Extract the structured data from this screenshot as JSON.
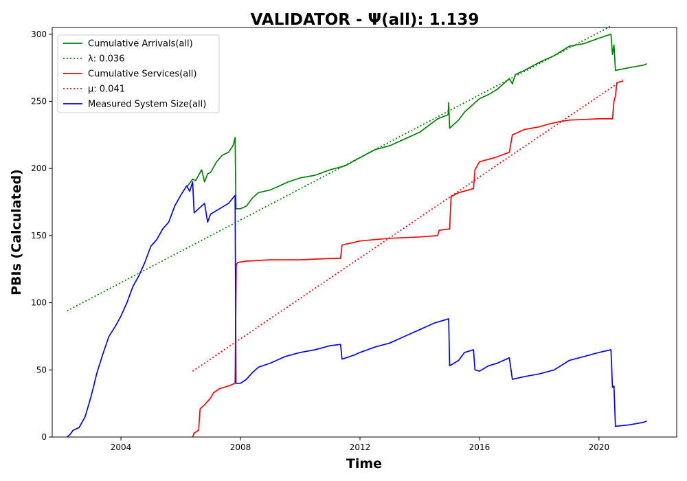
{
  "chart_data": {
    "type": "line",
    "title": "VALIDATOR -  Ψ(all): 1.139",
    "xlabel": "Time",
    "ylabel": "PBIs (Calculated)",
    "xlim": [
      2001.7,
      2022.6
    ],
    "ylim": [
      0,
      305
    ],
    "x_ticks": [
      2004,
      2008,
      2012,
      2016,
      2020
    ],
    "y_ticks": [
      0,
      50,
      100,
      150,
      200,
      250,
      300
    ],
    "grid": false,
    "legend_position": "top-left",
    "series": [
      {
        "name": "Cumulative Arrivals(all)",
        "color": "#008000",
        "style": "solid",
        "points": [
          [
            2006.2,
            186
          ],
          [
            2006.4,
            192
          ],
          [
            2006.5,
            191
          ],
          [
            2006.6,
            195
          ],
          [
            2006.7,
            199
          ],
          [
            2006.8,
            190
          ],
          [
            2006.9,
            196
          ],
          [
            2007.0,
            197
          ],
          [
            2007.2,
            205
          ],
          [
            2007.4,
            210
          ],
          [
            2007.6,
            212
          ],
          [
            2007.75,
            217
          ],
          [
            2007.82,
            223
          ],
          [
            2007.85,
            170
          ],
          [
            2008.0,
            170
          ],
          [
            2008.2,
            172
          ],
          [
            2008.4,
            178
          ],
          [
            2008.6,
            182
          ],
          [
            2009.0,
            184
          ],
          [
            2009.3,
            187
          ],
          [
            2009.6,
            190
          ],
          [
            2010.0,
            193
          ],
          [
            2010.5,
            195
          ],
          [
            2011.0,
            199
          ],
          [
            2011.5,
            202
          ],
          [
            2012.0,
            208
          ],
          [
            2012.5,
            214
          ],
          [
            2013.0,
            217
          ],
          [
            2013.5,
            222
          ],
          [
            2014.0,
            227
          ],
          [
            2014.3,
            232
          ],
          [
            2014.6,
            237
          ],
          [
            2014.95,
            240
          ],
          [
            2014.97,
            249
          ],
          [
            2015.0,
            230
          ],
          [
            2015.3,
            236
          ],
          [
            2015.5,
            242
          ],
          [
            2015.8,
            248
          ],
          [
            2016.0,
            252
          ],
          [
            2016.3,
            255
          ],
          [
            2016.6,
            259
          ],
          [
            2017.0,
            267
          ],
          [
            2017.1,
            263
          ],
          [
            2017.2,
            270
          ],
          [
            2017.5,
            273
          ],
          [
            2018.0,
            279
          ],
          [
            2018.5,
            284
          ],
          [
            2019.0,
            291
          ],
          [
            2019.5,
            293
          ],
          [
            2020.0,
            297
          ],
          [
            2020.4,
            300
          ],
          [
            2020.45,
            285
          ],
          [
            2020.5,
            292
          ],
          [
            2020.55,
            273
          ],
          [
            2021.0,
            275
          ],
          [
            2021.5,
            277
          ],
          [
            2021.6,
            278
          ]
        ]
      },
      {
        "name": "λ: 0.036",
        "color": "#008000",
        "style": "dotted",
        "points": [
          [
            2002.2,
            94
          ],
          [
            2020.4,
            306
          ]
        ]
      },
      {
        "name": "Cumulative Services(all)",
        "color": "#ff0000",
        "style": "solid",
        "points": [
          [
            2006.4,
            0
          ],
          [
            2006.45,
            3
          ],
          [
            2006.6,
            5
          ],
          [
            2006.65,
            21
          ],
          [
            2006.8,
            24
          ],
          [
            2007.0,
            29
          ],
          [
            2007.1,
            33
          ],
          [
            2007.3,
            36
          ],
          [
            2007.6,
            38
          ],
          [
            2007.82,
            40
          ],
          [
            2007.86,
            128
          ],
          [
            2007.9,
            130
          ],
          [
            2008.2,
            131
          ],
          [
            2009.0,
            132
          ],
          [
            2010.0,
            132
          ],
          [
            2011.0,
            133
          ],
          [
            2011.35,
            133
          ],
          [
            2011.4,
            143
          ],
          [
            2012.0,
            146
          ],
          [
            2012.5,
            147
          ],
          [
            2013.0,
            148
          ],
          [
            2014.0,
            149
          ],
          [
            2014.6,
            150
          ],
          [
            2014.65,
            154
          ],
          [
            2015.0,
            155
          ],
          [
            2015.05,
            179
          ],
          [
            2015.3,
            182
          ],
          [
            2015.8,
            185
          ],
          [
            2015.85,
            199
          ],
          [
            2016.0,
            205
          ],
          [
            2016.5,
            208
          ],
          [
            2017.0,
            212
          ],
          [
            2017.1,
            225
          ],
          [
            2017.3,
            227
          ],
          [
            2017.5,
            229
          ],
          [
            2018.0,
            231
          ],
          [
            2018.3,
            233
          ],
          [
            2018.7,
            235
          ],
          [
            2019.0,
            236
          ],
          [
            2020.0,
            237
          ],
          [
            2020.45,
            237
          ],
          [
            2020.5,
            250
          ],
          [
            2020.55,
            254
          ],
          [
            2020.6,
            264
          ],
          [
            2020.8,
            265
          ]
        ]
      },
      {
        "name": "μ: 0.041",
        "color": "#ff0000",
        "style": "dotted",
        "points": [
          [
            2006.4,
            49
          ],
          [
            2020.8,
            266
          ]
        ]
      },
      {
        "name": "Measured System Size(all)",
        "color": "#0000ff",
        "style": "solid",
        "points": [
          [
            2002.2,
            0
          ],
          [
            2002.3,
            2
          ],
          [
            2002.4,
            5
          ],
          [
            2002.6,
            7
          ],
          [
            2002.8,
            15
          ],
          [
            2003.0,
            30
          ],
          [
            2003.2,
            48
          ],
          [
            2003.4,
            62
          ],
          [
            2003.6,
            75
          ],
          [
            2003.8,
            82
          ],
          [
            2004.0,
            90
          ],
          [
            2004.2,
            100
          ],
          [
            2004.4,
            112
          ],
          [
            2004.6,
            120
          ],
          [
            2004.8,
            130
          ],
          [
            2005.0,
            142
          ],
          [
            2005.2,
            147
          ],
          [
            2005.4,
            155
          ],
          [
            2005.6,
            160
          ],
          [
            2005.8,
            172
          ],
          [
            2006.0,
            180
          ],
          [
            2006.2,
            187
          ],
          [
            2006.3,
            183
          ],
          [
            2006.4,
            190
          ],
          [
            2006.45,
            167
          ],
          [
            2006.6,
            170
          ],
          [
            2006.8,
            174
          ],
          [
            2006.9,
            160
          ],
          [
            2007.0,
            166
          ],
          [
            2007.3,
            170
          ],
          [
            2007.6,
            174
          ],
          [
            2007.82,
            180
          ],
          [
            2007.85,
            40
          ],
          [
            2008.0,
            40
          ],
          [
            2008.2,
            43
          ],
          [
            2008.4,
            48
          ],
          [
            2008.6,
            52
          ],
          [
            2009.0,
            55
          ],
          [
            2009.5,
            60
          ],
          [
            2010.0,
            63
          ],
          [
            2010.5,
            65
          ],
          [
            2011.0,
            68
          ],
          [
            2011.35,
            69
          ],
          [
            2011.4,
            58
          ],
          [
            2011.8,
            61
          ],
          [
            2012.0,
            63
          ],
          [
            2012.5,
            67
          ],
          [
            2013.0,
            70
          ],
          [
            2013.5,
            75
          ],
          [
            2014.0,
            80
          ],
          [
            2014.5,
            85
          ],
          [
            2014.97,
            88
          ],
          [
            2015.0,
            53
          ],
          [
            2015.3,
            57
          ],
          [
            2015.5,
            63
          ],
          [
            2015.8,
            65
          ],
          [
            2015.85,
            50
          ],
          [
            2016.0,
            49
          ],
          [
            2016.3,
            53
          ],
          [
            2016.6,
            55
          ],
          [
            2017.0,
            59
          ],
          [
            2017.1,
            43
          ],
          [
            2017.5,
            45
          ],
          [
            2018.0,
            47
          ],
          [
            2018.5,
            50
          ],
          [
            2019.0,
            57
          ],
          [
            2019.5,
            60
          ],
          [
            2020.0,
            63
          ],
          [
            2020.4,
            65
          ],
          [
            2020.45,
            37
          ],
          [
            2020.5,
            38
          ],
          [
            2020.55,
            8
          ],
          [
            2021.0,
            9
          ],
          [
            2021.5,
            11
          ],
          [
            2021.6,
            12
          ]
        ]
      }
    ]
  }
}
